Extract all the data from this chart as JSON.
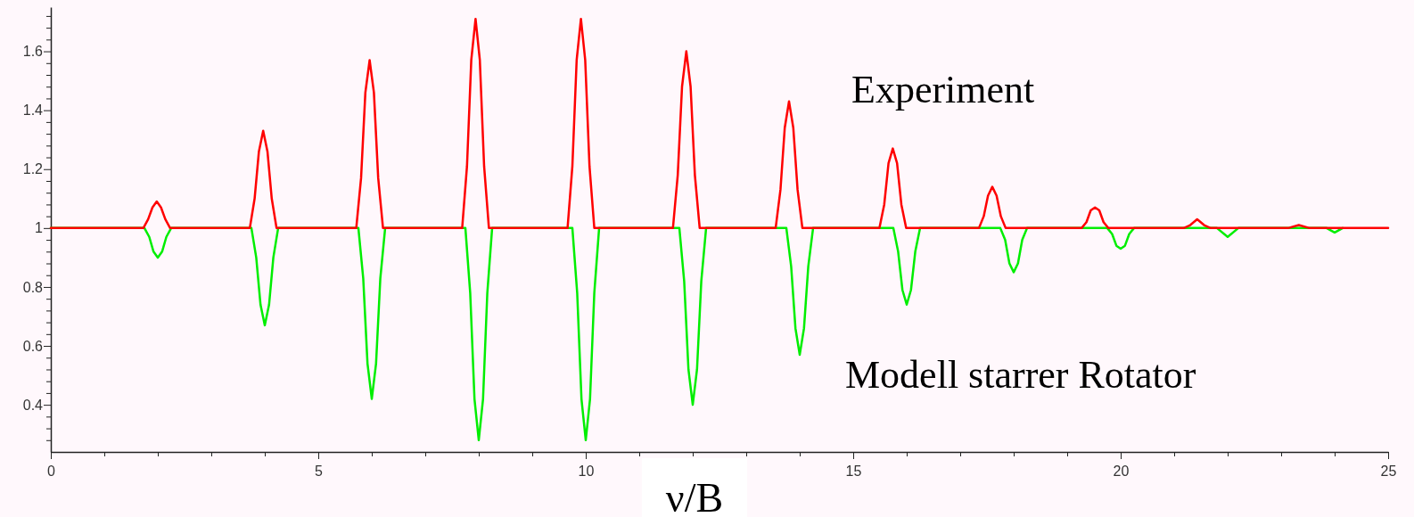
{
  "chart_data": {
    "type": "line",
    "xlabel": "ν/B",
    "annotations": [
      "Experiment",
      "Modell starrer Rotator"
    ],
    "xlim": [
      0,
      25
    ],
    "ylim": [
      0.24,
      1.75
    ],
    "xticks": [
      0,
      {
        "value": 1,
        "label": null
      },
      {
        "value": 2,
        "label": null
      },
      {
        "value": 3,
        "label": null
      },
      {
        "value": 4,
        "label": null
      },
      5,
      {
        "value": 6,
        "label": null
      },
      {
        "value": 7,
        "label": null
      },
      {
        "value": 8,
        "label": null
      },
      {
        "value": 9,
        "label": null
      },
      10,
      {
        "value": 11,
        "label": null
      },
      {
        "value": 12,
        "label": null
      },
      {
        "value": 13,
        "label": null
      },
      {
        "value": 14,
        "label": null
      },
      15,
      {
        "value": 16,
        "label": null
      },
      {
        "value": 17,
        "label": null
      },
      {
        "value": 18,
        "label": null
      },
      {
        "value": 19,
        "label": null
      },
      20,
      {
        "value": 21,
        "label": null
      },
      {
        "value": 22,
        "label": null
      },
      {
        "value": 23,
        "label": null
      },
      {
        "value": 24,
        "label": null
      },
      25
    ],
    "yticks": [
      {
        "value": 0.28,
        "label": null
      },
      {
        "value": 0.32,
        "label": null
      },
      {
        "value": 0.36,
        "label": null
      },
      0.4,
      {
        "value": 0.44,
        "label": null
      },
      {
        "value": 0.48,
        "label": null
      },
      {
        "value": 0.52,
        "label": null
      },
      {
        "value": 0.56,
        "label": null
      },
      0.6,
      {
        "value": 0.64,
        "label": null
      },
      {
        "value": 0.68,
        "label": null
      },
      {
        "value": 0.72,
        "label": null
      },
      {
        "value": 0.76,
        "label": null
      },
      0.8,
      {
        "value": 0.84,
        "label": null
      },
      {
        "value": 0.88,
        "label": null
      },
      {
        "value": 0.92,
        "label": null
      },
      {
        "value": 0.96,
        "label": null
      },
      1,
      {
        "value": 1.04,
        "label": null
      },
      {
        "value": 1.08,
        "label": null
      },
      {
        "value": 1.12,
        "label": null
      },
      {
        "value": 1.16,
        "label": null
      },
      1.2,
      {
        "value": 1.24,
        "label": null
      },
      {
        "value": 1.28,
        "label": null
      },
      {
        "value": 1.32,
        "label": null
      },
      {
        "value": 1.36,
        "label": null
      },
      1.4,
      {
        "value": 1.44,
        "label": null
      },
      {
        "value": 1.48,
        "label": null
      },
      {
        "value": 1.52,
        "label": null
      },
      {
        "value": 1.56,
        "label": null
      },
      1.6,
      {
        "value": 1.64,
        "label": null
      },
      {
        "value": 1.68,
        "label": null
      },
      {
        "value": 1.72,
        "label": null
      }
    ],
    "marker": "none",
    "line_style": "solid",
    "series": [
      {
        "color": "#00ee00",
        "x": [
          0,
          1.75,
          1.84,
          1.92,
          2,
          2.08,
          2.16,
          2.25,
          3.75,
          3.84,
          3.92,
          4,
          4.08,
          4.16,
          4.25,
          5.75,
          5.84,
          5.92,
          6,
          6.08,
          6.16,
          6.25,
          7.75,
          7.84,
          7.92,
          8,
          8.08,
          8.16,
          8.25,
          9.75,
          9.84,
          9.92,
          10,
          10.08,
          10.16,
          10.25,
          11.75,
          11.84,
          11.92,
          12,
          12.08,
          12.16,
          12.25,
          13.75,
          13.84,
          13.92,
          14,
          14.08,
          14.16,
          14.25,
          15.75,
          15.84,
          15.92,
          16,
          16.08,
          16.16,
          16.25,
          17.75,
          17.84,
          17.92,
          18,
          18.08,
          18.16,
          18.25,
          19.75,
          19.84,
          19.92,
          20,
          20.08,
          20.16,
          20.25,
          21.8,
          22,
          22.2,
          23.85,
          24,
          24.15
        ],
        "values": [
          1,
          1,
          0.97,
          0.92,
          0.9,
          0.92,
          0.97,
          1,
          1,
          0.9,
          0.74,
          0.67,
          0.74,
          0.9,
          1,
          1,
          0.83,
          0.54,
          0.42,
          0.54,
          0.83,
          1,
          1,
          0.78,
          0.42,
          0.28,
          0.42,
          0.78,
          1,
          1,
          0.78,
          0.42,
          0.28,
          0.42,
          0.78,
          1,
          1,
          0.82,
          0.52,
          0.4,
          0.52,
          0.82,
          1,
          1,
          0.87,
          0.66,
          0.57,
          0.66,
          0.87,
          1,
          1,
          0.92,
          0.79,
          0.74,
          0.79,
          0.92,
          1,
          1,
          0.96,
          0.88,
          0.85,
          0.88,
          0.96,
          1,
          1,
          0.98,
          0.94,
          0.93,
          0.94,
          0.98,
          1,
          1,
          0.97,
          1,
          1,
          0.985,
          1
        ]
      },
      {
        "color": "#ff0000",
        "x": [
          0,
          1.73,
          1.82,
          1.9,
          1.98,
          2.06,
          2.14,
          2.23,
          3.72,
          3.81,
          3.89,
          3.97,
          4.05,
          4.13,
          4.22,
          5.71,
          5.8,
          5.88,
          5.96,
          6.04,
          6.12,
          6.21,
          7.69,
          7.78,
          7.86,
          7.94,
          8.02,
          8.1,
          8.19,
          9.66,
          9.75,
          9.83,
          9.91,
          9.99,
          10.07,
          10.16,
          11.63,
          11.72,
          11.8,
          11.88,
          11.96,
          12.04,
          12.13,
          13.55,
          13.64,
          13.72,
          13.8,
          13.88,
          13.96,
          14.05,
          15.49,
          15.58,
          15.66,
          15.74,
          15.82,
          15.9,
          15.99,
          17.35,
          17.44,
          17.52,
          17.6,
          17.68,
          17.76,
          17.85,
          19.27,
          19.36,
          19.44,
          19.52,
          19.6,
          19.68,
          19.77,
          21.18,
          21.3,
          21.43,
          21.56,
          21.68,
          23.13,
          23.33,
          23.53,
          25
        ],
        "values": [
          1,
          1,
          1.03,
          1.07,
          1.09,
          1.07,
          1.03,
          1,
          1,
          1.1,
          1.26,
          1.33,
          1.26,
          1.1,
          1,
          1,
          1.17,
          1.46,
          1.57,
          1.46,
          1.17,
          1,
          1,
          1.21,
          1.57,
          1.71,
          1.57,
          1.21,
          1,
          1,
          1.21,
          1.57,
          1.71,
          1.57,
          1.21,
          1,
          1,
          1.18,
          1.48,
          1.6,
          1.48,
          1.18,
          1,
          1,
          1.13,
          1.34,
          1.43,
          1.34,
          1.13,
          1,
          1,
          1.08,
          1.22,
          1.27,
          1.22,
          1.08,
          1,
          1,
          1.04,
          1.11,
          1.14,
          1.11,
          1.04,
          1,
          1,
          1.02,
          1.06,
          1.07,
          1.06,
          1.02,
          1,
          1,
          1.01,
          1.03,
          1.01,
          1,
          1,
          1.01,
          1,
          1
        ]
      }
    ]
  }
}
